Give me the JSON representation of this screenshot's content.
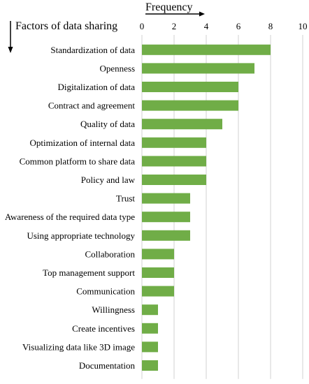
{
  "chart_data": {
    "type": "bar",
    "orientation": "horizontal",
    "xlabel": "Frequency",
    "ylabel": "Factors of data sharing",
    "xlim": [
      0,
      10
    ],
    "xticks": [
      0,
      2,
      4,
      6,
      8,
      10
    ],
    "grid": "vertical",
    "bar_color": "#70ad47",
    "categories": [
      "Standardization of data",
      "Openness",
      "Digitalization of data",
      "Contract and agreement",
      "Quality of data",
      "Optimization of internal data",
      "Common platform to share data",
      "Policy and law",
      "Trust",
      "Awareness of the required data type",
      "Using appropriate technology",
      "Collaboration",
      "Top management support",
      "Communication",
      "Willingness",
      "Create incentives",
      "Visualizing data like 3D image",
      "Documentation"
    ],
    "values": [
      8,
      7,
      6,
      6,
      5,
      4,
      4,
      4,
      3,
      3,
      3,
      2,
      2,
      2,
      1,
      1,
      1,
      1
    ]
  }
}
